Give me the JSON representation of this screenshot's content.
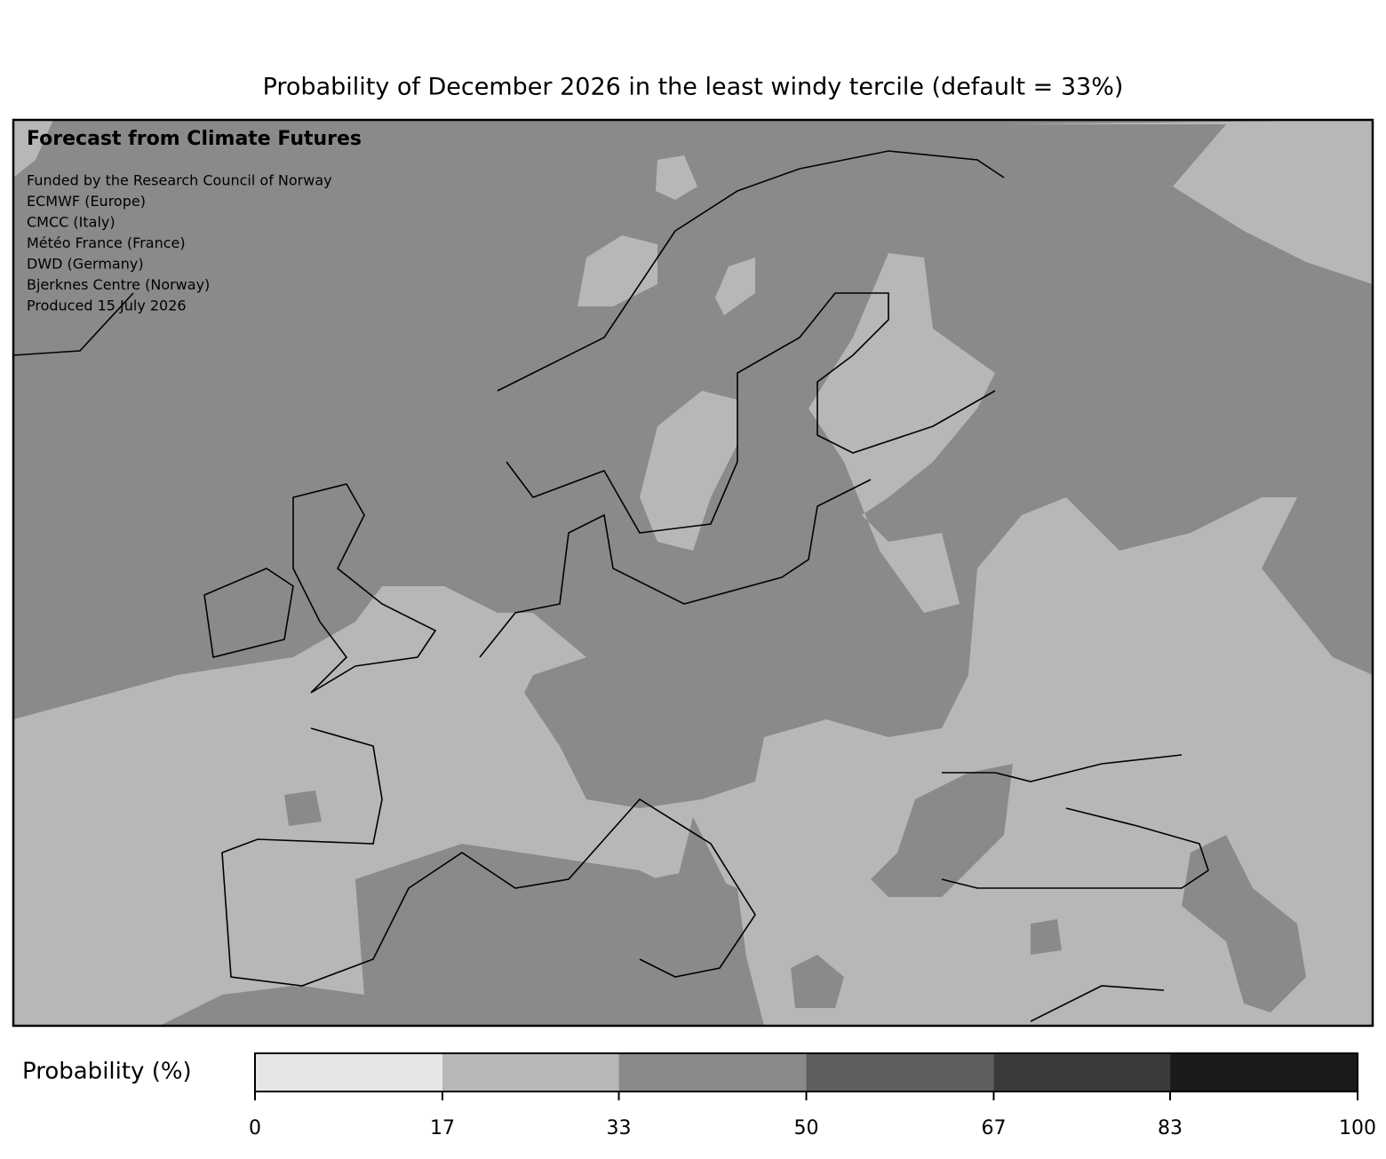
{
  "title": "Probability of December 2026 in the least windy tercile (default = 33%)",
  "annotation": {
    "heading": "Forecast from Climate Futures",
    "lines": [
      "Funded by the Research Council of Norway",
      "ECMWF (Europe)",
      "CMCC (Italy)",
      "Météo France (France)",
      "DWD (Germany)",
      "Bjerknes Centre (Norway)",
      "Produced 15 July 2026"
    ]
  },
  "colorbar": {
    "label": "Probability (%)",
    "lim": [
      0,
      100
    ],
    "ticks": [
      0,
      17,
      33,
      50,
      67,
      83,
      100
    ],
    "colors": [
      "#e6e6e6",
      "#b7b7b7",
      "#8a8a8a",
      "#5e5e5e",
      "#3a3a3a",
      "#1a1a1a"
    ]
  }
}
